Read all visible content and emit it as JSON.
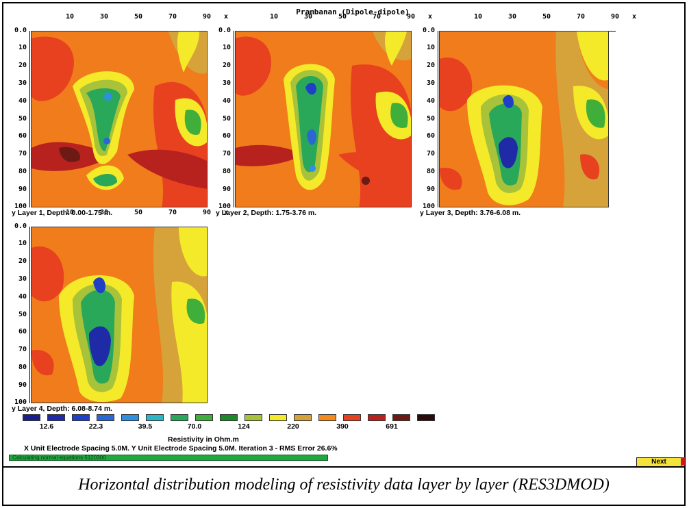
{
  "window": {
    "title": "Prambanan (Dipole-dipole)"
  },
  "axes": {
    "x_ticks": [
      "10",
      "30",
      "50",
      "70",
      "90"
    ],
    "x_letter": "x",
    "y_ticks": [
      "0.0",
      "10",
      "20",
      "30",
      "40",
      "50",
      "60",
      "70",
      "80",
      "90",
      "100"
    ],
    "y_letter": "y"
  },
  "panels": [
    {
      "caption": "Layer 1, Depth: 0.00-1.75 m."
    },
    {
      "caption": "Layer 2, Depth: 1.75-3.76 m."
    },
    {
      "caption": "Layer 3, Depth: 3.76-6.08 m."
    },
    {
      "caption": "Layer 4, Depth: 6.08-8.74 m."
    }
  ],
  "legend": {
    "colors": [
      "#1b1f8c",
      "#1f2ba6",
      "#1f3fc7",
      "#2a67d3",
      "#2f8fe0",
      "#2fb5c8",
      "#2aa85a",
      "#3fae3a",
      "#1d8a2a",
      "#a8c23a",
      "#f4ea2a",
      "#d6a33a",
      "#f38a1e",
      "#e8411f",
      "#b8221e",
      "#6e1a14",
      "#2a0b0b"
    ],
    "labels": [
      "12.6",
      "22.3",
      "39.5",
      "70.0",
      "124",
      "220",
      "390",
      "691"
    ],
    "title": "Resistivity in Ohm.m"
  },
  "info": {
    "spacing_text": "X Unit Electrode Spacing 5.0M.   Y Unit Electrode Spacing 5.0M.     Iteration 3 - RMS Error 26.6%"
  },
  "status": {
    "text": "Calculating normal equations 5120300"
  },
  "buttons": {
    "next_label": "Next"
  },
  "caption": "Horizontal distribution modeling of resistivity data layer by layer (RES3DMOD)"
}
